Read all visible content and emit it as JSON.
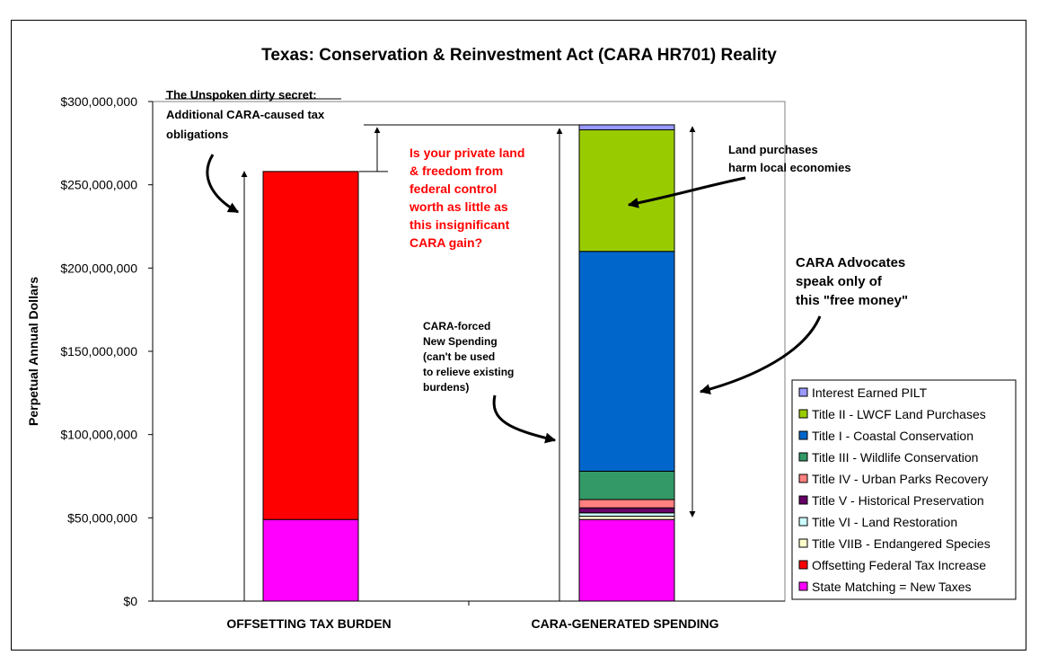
{
  "chart_data": {
    "type": "bar",
    "stacked": true,
    "title": "Texas:  Conservation & Reinvestment Act (CARA HR701) Reality",
    "xlabel": "",
    "ylabel": "Perpetual Annual Dollars",
    "ylim": [
      0,
      300000000
    ],
    "yticks": [
      0,
      50000000,
      100000000,
      150000000,
      200000000,
      250000000,
      300000000
    ],
    "ytick_labels": [
      "$0",
      "$50,000,000",
      "$100,000,000",
      "$150,000,000",
      "$200,000,000",
      "$250,000,000",
      "$300,000,000"
    ],
    "grid": false,
    "legend_position": "right",
    "categories": [
      "OFFSETTING TAX BURDEN",
      "CARA-GENERATED SPENDING"
    ],
    "series": [
      {
        "name": "State Matching = New Taxes",
        "color": "#ff00ff",
        "values": [
          49000000,
          49000000
        ]
      },
      {
        "name": "Offsetting Federal Tax Increase",
        "color": "#ff0000",
        "values": [
          209000000,
          0
        ]
      },
      {
        "name": "Title VIIB - Endangered Species",
        "color": "#ffffcc",
        "values": [
          0,
          2000000
        ]
      },
      {
        "name": "Title VI - Land Restoration",
        "color": "#ccffff",
        "values": [
          0,
          2000000
        ]
      },
      {
        "name": "Title V - Historical Preservation",
        "color": "#660066",
        "values": [
          0,
          3000000
        ]
      },
      {
        "name": "Title IV - Urban Parks Recovery",
        "color": "#ff8080",
        "values": [
          0,
          5000000
        ]
      },
      {
        "name": "Title III - Wildlife Conservation",
        "color": "#339966",
        "values": [
          0,
          17000000
        ]
      },
      {
        "name": "Title I - Coastal Conservation",
        "color": "#0066cc",
        "values": [
          0,
          132000000
        ]
      },
      {
        "name": "Title II - LWCF Land Purchases",
        "color": "#99cc00",
        "values": [
          0,
          73000000
        ]
      },
      {
        "name": "Interest Earned PILT",
        "color": "#9999ff",
        "values": [
          0,
          3000000
        ]
      }
    ],
    "annotations": {
      "secret": [
        "The Unspoken dirty secret:",
        "Additional CARA-caused tax",
        "obligations"
      ],
      "question": [
        "Is your private land",
        "& freedom from",
        "federal control",
        "worth as little as",
        "this insignificant",
        "CARA gain?"
      ],
      "land": [
        "Land purchases",
        "harm local economies"
      ],
      "advocates": [
        "CARA Advocates",
        "speak only of",
        "this \"free money\""
      ],
      "forced": [
        "CARA-forced",
        "New Spending",
        "(can't be used",
        "to relieve existing",
        "burdens)"
      ]
    }
  }
}
